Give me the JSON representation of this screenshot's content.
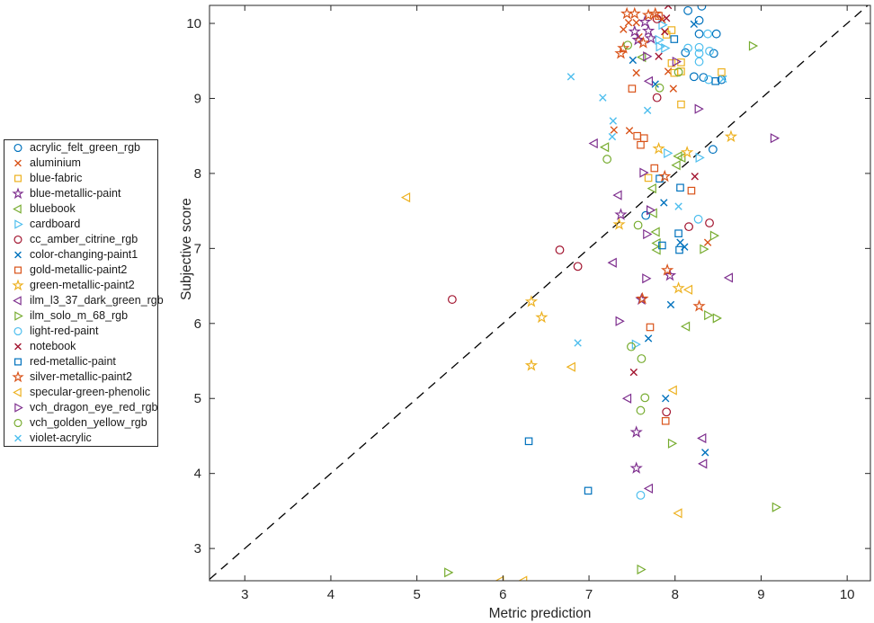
{
  "chart_data": {
    "type": "scatter",
    "title": "",
    "xlabel": "Metric prediction",
    "ylabel": "Subjective score",
    "xlim": [
      2.59,
      10.27
    ],
    "ylim": [
      2.57,
      10.24
    ],
    "xticks": [
      3,
      4,
      5,
      6,
      7,
      8,
      9,
      10
    ],
    "yticks": [
      3,
      4,
      5,
      6,
      7,
      8,
      9,
      10
    ],
    "grid": false,
    "box": true,
    "background": "#ffffff",
    "axis_color": "#262626",
    "legend_position": "outside-left",
    "identity_line": {
      "style": "dashed",
      "color": "#000000",
      "equation": "y = x"
    },
    "series": [
      {
        "name": "acrylic_felt_green_rgb",
        "marker": "circle",
        "color": "#0072BD",
        "points": [
          [
            8.31,
            10.23
          ],
          [
            8.15,
            10.17
          ],
          [
            8.28,
            10.04
          ],
          [
            8.28,
            9.86
          ],
          [
            8.48,
            9.86
          ],
          [
            8.12,
            9.61
          ],
          [
            8.45,
            9.6
          ],
          [
            8.22,
            9.29
          ],
          [
            8.33,
            9.28
          ],
          [
            8.54,
            9.25
          ],
          [
            8.44,
            8.32
          ],
          [
            7.66,
            7.44
          ]
        ]
      },
      {
        "name": "aluminium",
        "marker": "x",
        "color": "#D95319",
        "points": [
          [
            7.85,
            10.05
          ],
          [
            7.46,
            10.01
          ],
          [
            7.55,
            10.01
          ],
          [
            7.4,
            9.92
          ],
          [
            7.58,
            9.82
          ],
          [
            7.92,
            9.36
          ],
          [
            7.55,
            9.34
          ],
          [
            7.98,
            9.13
          ],
          [
            7.29,
            8.58
          ],
          [
            7.47,
            8.57
          ],
          [
            8.38,
            7.08
          ]
        ]
      },
      {
        "name": "blue-fabric",
        "marker": "square",
        "color": "#EDB120",
        "points": [
          [
            7.96,
            9.91
          ],
          [
            7.9,
            9.85
          ],
          [
            8.07,
            9.48
          ],
          [
            7.96,
            9.47
          ],
          [
            8.07,
            9.36
          ],
          [
            7.99,
            9.34
          ],
          [
            8.54,
            9.35
          ],
          [
            8.07,
            8.92
          ],
          [
            7.69,
            7.94
          ]
        ]
      },
      {
        "name": "blue-metallic-paint",
        "marker": "pentagram",
        "color": "#7E2F8E",
        "points": [
          [
            7.65,
            10.02
          ],
          [
            7.69,
            9.9
          ],
          [
            7.53,
            9.89
          ],
          [
            7.72,
            9.8
          ],
          [
            7.57,
            9.78
          ],
          [
            7.37,
            7.45
          ],
          [
            7.94,
            6.64
          ],
          [
            7.61,
            6.32
          ],
          [
            7.55,
            4.55
          ],
          [
            7.55,
            4.07
          ]
        ]
      },
      {
        "name": "bluebook",
        "marker": "triangle-left",
        "color": "#77AC30",
        "points": [
          [
            7.62,
            9.55
          ],
          [
            7.19,
            8.35
          ],
          [
            8.04,
            8.23
          ],
          [
            8.08,
            8.21
          ],
          [
            8.02,
            8.11
          ],
          [
            7.74,
            7.8
          ],
          [
            7.75,
            7.47
          ],
          [
            7.78,
            7.22
          ],
          [
            7.79,
            7.07
          ],
          [
            7.79,
            6.98
          ],
          [
            8.13,
            5.96
          ]
        ]
      },
      {
        "name": "cardboard",
        "marker": "triangle-right",
        "color": "#4DBEEE",
        "points": [
          [
            7.85,
            9.98
          ],
          [
            7.81,
            9.78
          ],
          [
            7.82,
            9.69
          ],
          [
            7.88,
            9.67
          ],
          [
            7.91,
            8.27
          ],
          [
            8.28,
            8.21
          ],
          [
            7.54,
            5.72
          ]
        ]
      },
      {
        "name": "cc_amber_citrine_rgb",
        "marker": "circle",
        "color": "#A2142F",
        "points": [
          [
            7.79,
            10.06
          ],
          [
            7.79,
            9.01
          ],
          [
            8.4,
            7.34
          ],
          [
            8.16,
            7.29
          ],
          [
            6.66,
            6.98
          ],
          [
            6.87,
            6.76
          ],
          [
            5.41,
            6.32
          ],
          [
            7.9,
            4.82
          ]
        ]
      },
      {
        "name": "color-changing-paint1",
        "marker": "x",
        "color": "#0072BD",
        "points": [
          [
            8.22,
            9.99
          ],
          [
            7.51,
            9.51
          ],
          [
            7.77,
            9.19
          ],
          [
            7.87,
            7.61
          ],
          [
            8.06,
            7.08
          ],
          [
            8.11,
            7.02
          ],
          [
            7.95,
            6.25
          ],
          [
            7.69,
            5.8
          ],
          [
            7.89,
            5.0
          ],
          [
            8.35,
            4.28
          ]
        ]
      },
      {
        "name": "gold-metallic-paint2",
        "marker": "square",
        "color": "#D95319",
        "points": [
          [
            7.81,
            10.1
          ],
          [
            7.5,
            9.13
          ],
          [
            7.56,
            8.5
          ],
          [
            7.64,
            8.47
          ],
          [
            7.6,
            8.38
          ],
          [
            7.76,
            8.07
          ],
          [
            8.19,
            7.77
          ],
          [
            7.71,
            5.95
          ],
          [
            7.89,
            4.7
          ]
        ]
      },
      {
        "name": "green-metallic-paint2",
        "marker": "pentagram",
        "color": "#EDB120",
        "points": [
          [
            8.65,
            8.49
          ],
          [
            7.81,
            8.33
          ],
          [
            8.14,
            8.28
          ],
          [
            7.35,
            7.32
          ],
          [
            8.04,
            6.47
          ],
          [
            6.33,
            6.29
          ],
          [
            6.45,
            6.08
          ],
          [
            6.33,
            5.44
          ]
        ]
      },
      {
        "name": "ilm_l3_37_dark_green_rgb",
        "marker": "triangle-left",
        "color": "#7E2F8E",
        "points": [
          [
            7.7,
            9.23
          ],
          [
            7.06,
            8.4
          ],
          [
            7.34,
            7.71
          ],
          [
            7.28,
            6.81
          ],
          [
            8.63,
            6.61
          ],
          [
            7.45,
            5.0
          ],
          [
            8.32,
            4.47
          ],
          [
            8.33,
            4.13
          ],
          [
            7.7,
            3.8
          ]
        ]
      },
      {
        "name": "ilm_solo_m_68_rgb",
        "marker": "triangle-right",
        "color": "#77AC30",
        "points": [
          [
            8.9,
            9.7
          ],
          [
            8.45,
            7.17
          ],
          [
            8.33,
            6.99
          ],
          [
            8.38,
            6.11
          ],
          [
            8.48,
            6.07
          ],
          [
            7.96,
            4.4
          ],
          [
            9.17,
            3.55
          ],
          [
            7.6,
            2.72
          ],
          [
            5.36,
            2.68
          ]
        ]
      },
      {
        "name": "light-red-paint",
        "marker": "circle",
        "color": "#4DBEEE",
        "points": [
          [
            8.38,
            9.86
          ],
          [
            8.28,
            9.68
          ],
          [
            8.15,
            9.67
          ],
          [
            8.4,
            9.63
          ],
          [
            8.28,
            9.6
          ],
          [
            8.28,
            9.49
          ],
          [
            8.39,
            9.25
          ],
          [
            8.27,
            7.39
          ],
          [
            7.6,
            3.71
          ]
        ]
      },
      {
        "name": "notebook",
        "marker": "x",
        "color": "#A2142F",
        "points": [
          [
            7.92,
            10.24
          ],
          [
            7.9,
            10.07
          ],
          [
            7.88,
            9.89
          ],
          [
            7.81,
            9.56
          ],
          [
            8.23,
            7.96
          ],
          [
            7.52,
            5.35
          ]
        ]
      },
      {
        "name": "red-metallic-paint",
        "marker": "square",
        "color": "#0072BD",
        "points": [
          [
            7.99,
            9.79
          ],
          [
            8.47,
            9.23
          ],
          [
            7.82,
            7.93
          ],
          [
            8.06,
            7.81
          ],
          [
            8.04,
            7.2
          ],
          [
            7.85,
            7.04
          ],
          [
            8.05,
            6.98
          ],
          [
            6.3,
            4.43
          ],
          [
            6.99,
            3.77
          ]
        ]
      },
      {
        "name": "silver-metallic-paint2",
        "marker": "pentagram",
        "color": "#D95319",
        "points": [
          [
            7.44,
            10.13
          ],
          [
            7.53,
            10.13
          ],
          [
            7.69,
            10.11
          ],
          [
            7.77,
            10.13
          ],
          [
            7.63,
            9.74
          ],
          [
            7.4,
            9.67
          ],
          [
            7.37,
            9.6
          ],
          [
            7.88,
            7.96
          ],
          [
            7.91,
            6.71
          ],
          [
            7.62,
            6.33
          ],
          [
            8.28,
            6.23
          ]
        ]
      },
      {
        "name": "specular-green-phenolic",
        "marker": "triangle-left",
        "color": "#EDB120",
        "points": [
          [
            4.88,
            7.68
          ],
          [
            8.16,
            6.45
          ],
          [
            6.8,
            5.42
          ],
          [
            7.98,
            5.11
          ],
          [
            8.04,
            3.47
          ],
          [
            5.97,
            2.57
          ],
          [
            6.24,
            2.57
          ]
        ]
      },
      {
        "name": "vch_dragon_eye_red_rgb",
        "marker": "triangle-right",
        "color": "#7E2F8E",
        "points": [
          [
            7.67,
            9.56
          ],
          [
            8.01,
            9.49
          ],
          [
            8.27,
            8.86
          ],
          [
            9.15,
            8.47
          ],
          [
            7.63,
            8.01
          ],
          [
            7.71,
            7.51
          ],
          [
            7.67,
            7.19
          ],
          [
            7.66,
            6.6
          ],
          [
            7.35,
            6.03
          ]
        ]
      },
      {
        "name": "vch_golden_yellow_rgb",
        "marker": "circle",
        "color": "#77AC30",
        "points": [
          [
            7.45,
            9.71
          ],
          [
            8.04,
            9.35
          ],
          [
            7.82,
            9.14
          ],
          [
            7.21,
            8.19
          ],
          [
            7.57,
            7.31
          ],
          [
            7.49,
            5.69
          ],
          [
            7.61,
            5.53
          ],
          [
            7.65,
            5.01
          ],
          [
            7.6,
            4.84
          ]
        ]
      },
      {
        "name": "violet-acrylic",
        "marker": "x",
        "color": "#4DBEEE",
        "points": [
          [
            6.79,
            9.29
          ],
          [
            8.56,
            9.26
          ],
          [
            7.16,
            9.01
          ],
          [
            7.68,
            8.84
          ],
          [
            7.28,
            8.7
          ],
          [
            7.27,
            8.49
          ],
          [
            8.04,
            7.56
          ],
          [
            6.87,
            5.74
          ]
        ]
      }
    ]
  }
}
